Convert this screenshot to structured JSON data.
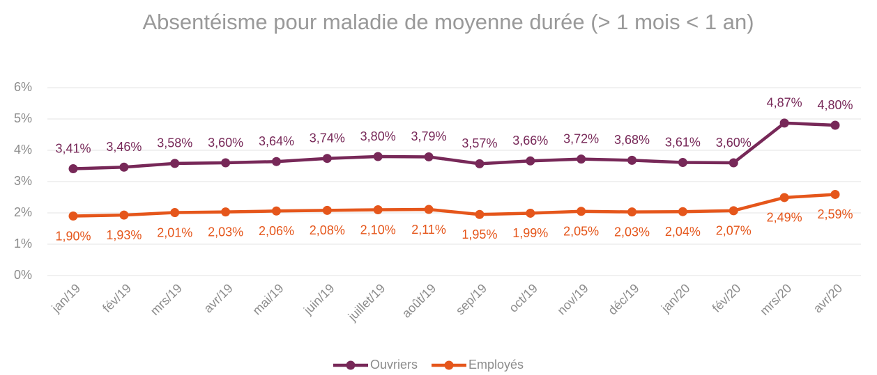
{
  "chart_data": {
    "type": "line",
    "title": "Absentéisme pour maladie de moyenne durée (> 1 mois < 1 an)",
    "categories": [
      "jan/19",
      "fév/19",
      "mrs/19",
      "avr/19",
      "mai/19",
      "juin/19",
      "juillet/19",
      "août/19",
      "sep/19",
      "oct/19",
      "nov/19",
      "déc/19",
      "jan/20",
      "fév/20",
      "mrs/20",
      "avr/20"
    ],
    "series": [
      {
        "name": "Ouvriers",
        "color": "#772858",
        "values": [
          3.41,
          3.46,
          3.58,
          3.6,
          3.64,
          3.74,
          3.8,
          3.79,
          3.57,
          3.66,
          3.72,
          3.68,
          3.61,
          3.6,
          4.87,
          4.8
        ],
        "value_labels": [
          "3,41%",
          "3,46%",
          "3,58%",
          "3,60%",
          "3,64%",
          "3,74%",
          "3,80%",
          "3,79%",
          "3,57%",
          "3,66%",
          "3,72%",
          "3,68%",
          "3,61%",
          "3,60%",
          "4,87%",
          "4,80%"
        ]
      },
      {
        "name": "Employés",
        "color": "#e5561b",
        "values": [
          1.9,
          1.93,
          2.01,
          2.03,
          2.06,
          2.08,
          2.1,
          2.11,
          1.95,
          1.99,
          2.05,
          2.03,
          2.04,
          2.07,
          2.49,
          2.59
        ],
        "value_labels": [
          "1,90%",
          "1,93%",
          "2,01%",
          "2,03%",
          "2,06%",
          "2,08%",
          "2,10%",
          "2,11%",
          "1,95%",
          "1,99%",
          "2,05%",
          "2,03%",
          "2,04%",
          "2,07%",
          "2,49%",
          "2,59%"
        ]
      }
    ],
    "ylim": [
      0,
      6
    ],
    "yticks": [
      {
        "value": 0,
        "label": "0%"
      },
      {
        "value": 1,
        "label": "1%"
      },
      {
        "value": 2,
        "label": "2%"
      },
      {
        "value": 3,
        "label": "3%"
      },
      {
        "value": 4,
        "label": "4%"
      },
      {
        "value": 5,
        "label": "5%"
      },
      {
        "value": 6,
        "label": "6%"
      }
    ],
    "grid": true,
    "legend": "bottom"
  }
}
